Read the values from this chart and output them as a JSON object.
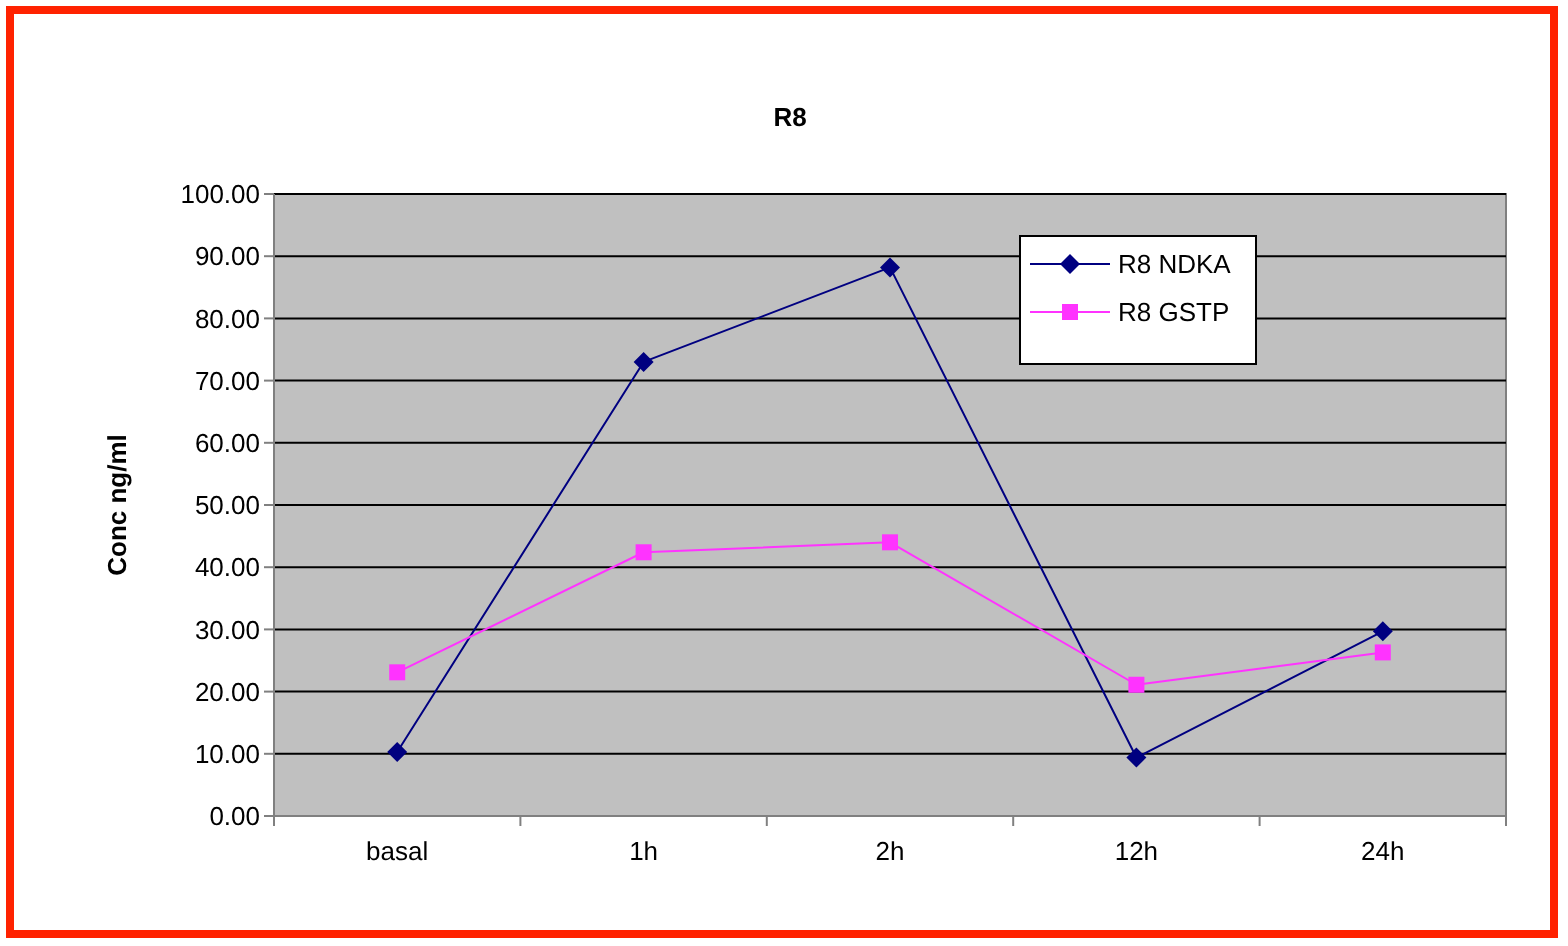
{
  "chart_data": {
    "type": "line",
    "title": "R8",
    "ylabel": "Conc  ng/ml",
    "categories": [
      "basal",
      "1h",
      "2h",
      "12h",
      "24h"
    ],
    "series": [
      {
        "name": "R8 NDKA",
        "color": "#000080",
        "marker": "diamond",
        "values": [
          10.3,
          73.0,
          88.2,
          9.4,
          29.7
        ]
      },
      {
        "name": "R8 GSTP",
        "color": "#ff33ff",
        "marker": "square",
        "values": [
          23.1,
          42.4,
          44.0,
          21.1,
          26.3
        ]
      }
    ],
    "ylim": [
      0,
      100
    ],
    "yticks": [
      {
        "value": 0,
        "label": "0.00"
      },
      {
        "value": 10,
        "label": "10.00"
      },
      {
        "value": 20,
        "label": "20.00"
      },
      {
        "value": 30,
        "label": "30.00"
      },
      {
        "value": 40,
        "label": "40.00"
      },
      {
        "value": 50,
        "label": "50.00"
      },
      {
        "value": 60,
        "label": "60.00"
      },
      {
        "value": 70,
        "label": "70.00"
      },
      {
        "value": 80,
        "label": "80.00"
      },
      {
        "value": 90,
        "label": "90.00"
      },
      {
        "value": 100,
        "label": "100.00"
      }
    ],
    "grid": "y",
    "legend": "top right"
  }
}
